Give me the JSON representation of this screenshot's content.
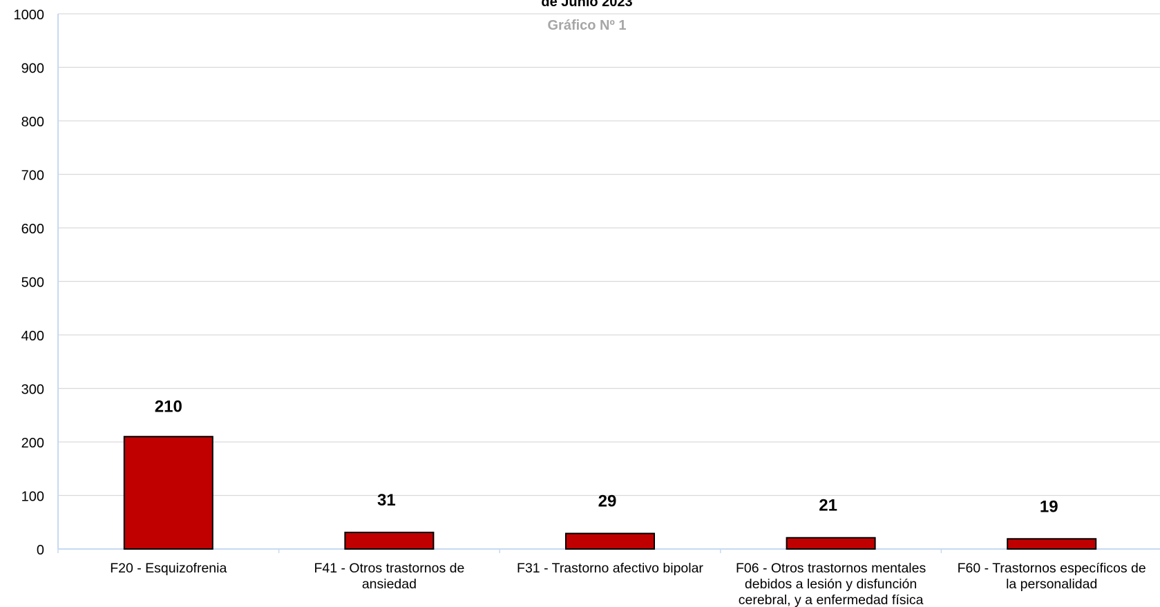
{
  "chart_data": {
    "type": "bar",
    "title": "de Junio 2023",
    "subtitle": "Gráfico Nº 1",
    "categories": [
      [
        "F20  - Esquizofrenia"
      ],
      [
        "F41  - Otros trastornos de",
        "ansiedad"
      ],
      [
        "F31  - Trastorno afectivo bipolar"
      ],
      [
        "F06  - Otros trastornos mentales",
        "debidos a lesión y disfunción",
        "cerebral, y a enfermedad física"
      ],
      [
        "F60  - Trastornos específicos de",
        "la personalidad"
      ]
    ],
    "values": [
      210,
      31,
      29,
      21,
      19
    ],
    "data_labels": [
      "210",
      "31",
      "29",
      "21",
      "19"
    ],
    "y_ticks": [
      "0",
      "100",
      "200",
      "300",
      "400",
      "500",
      "600",
      "700",
      "800",
      "900",
      "1000"
    ],
    "ylim": [
      0,
      1000
    ],
    "grid": true,
    "bar_color": "#c00000",
    "grid_color": "#d9d9d9",
    "axis_color": "#c5d9f1"
  }
}
